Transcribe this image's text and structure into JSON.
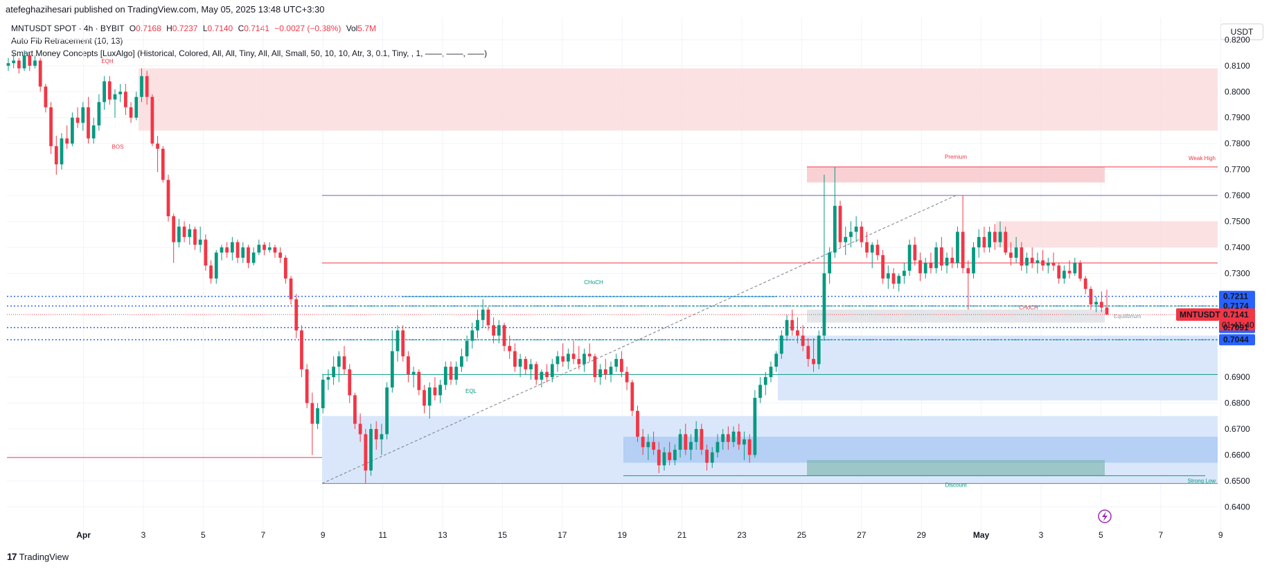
{
  "header": {
    "published": "atefeghazihesari published on TradingView.com, May 05, 2025 13:48 UTC+3:30"
  },
  "legend": {
    "symbol": "MNTUSDT SPOT · 4h · BYBIT",
    "o_label": "O",
    "o_value": "0.7168",
    "h_label": "H",
    "h_value": "0.7237",
    "l_label": "L",
    "l_value": "0.7140",
    "c_label": "C",
    "c_value": "0.7141",
    "change": "−0.0027 (−0.38%)",
    "vol_label": "Vol",
    "vol_value": "5.7M",
    "indicator1": "Auto Fib Retracement (10, 13)",
    "indicator2": "Smart Money Concepts [LuxAlgo] (Historical, Colored, All, All, Tiny, All, All, Small, 50, 10, 10, Atr, 3, 0.1, Tiny, , 1, ——, ——, ——)"
  },
  "currency_button": "USDT",
  "footer": {
    "brand": "TradingView",
    "logo": "17"
  },
  "colors": {
    "up": "#089981",
    "down": "#f23645",
    "supply": "#f7c5c9",
    "demand": "#bbd3f7",
    "blue_dot": "#2962ff",
    "purple": "#7e57c2"
  },
  "chart_data": {
    "type": "candlestick",
    "ylim": [
      0.635,
      0.83
    ],
    "y_ticks": [
      "0.8200",
      "0.8100",
      "0.8000",
      "0.7900",
      "0.7800",
      "0.7700",
      "0.7600",
      "0.7500",
      "0.7400",
      "0.7300",
      "0.6900",
      "0.6800",
      "0.6700",
      "0.6600",
      "0.6500",
      "0.6400"
    ],
    "y_tick_values": [
      0.82,
      0.81,
      0.8,
      0.79,
      0.78,
      0.77,
      0.76,
      0.75,
      0.74,
      0.73,
      0.69,
      0.68,
      0.67,
      0.66,
      0.65,
      0.64
    ],
    "x_tick_labels": [
      "Apr",
      "3",
      "5",
      "7",
      "9",
      "11",
      "13",
      "15",
      "17",
      "19",
      "21",
      "23",
      "25",
      "27",
      "29",
      "May",
      "3",
      "5",
      "7",
      "9"
    ],
    "x_tick_index": [
      -1,
      0,
      1,
      2,
      3,
      4,
      5,
      6,
      7,
      8,
      9,
      10,
      11,
      12,
      13,
      14,
      15,
      16,
      17,
      18
    ],
    "price_labels": [
      {
        "text": "0.7211",
        "value": 0.7211,
        "color": "#2962ff"
      },
      {
        "text": "0.7174",
        "value": 0.7174,
        "color": "#2962ff"
      },
      {
        "text": "0.7091",
        "value": 0.7091,
        "color": "#2962ff"
      },
      {
        "text": "0.7044",
        "value": 0.7044,
        "color": "#2962ff"
      }
    ],
    "last_price": {
      "symbol": "MNTUSDT",
      "price": "0.7141",
      "value": 0.7141,
      "countdown": "01:41:40"
    },
    "annotations": [
      {
        "text": "Premium",
        "color": "#f23645"
      },
      {
        "text": "Equilibrium",
        "color": "#9598a1"
      },
      {
        "text": "Discount",
        "color": "#089981"
      },
      {
        "text": "CHoCH",
        "color": "#089981"
      },
      {
        "text": "Weak High",
        "color": "#f23645"
      },
      {
        "text": "Strong Low",
        "color": "#089981"
      },
      {
        "text": "EQH",
        "color": "#f23645"
      },
      {
        "text": "BOS",
        "color": "#f23645"
      },
      {
        "text": "EQL",
        "color": "#089981"
      },
      {
        "text": "CHoCH",
        "color": "#f23645"
      }
    ],
    "candles": [
      [
        0.81,
        0.813,
        0.808,
        0.811
      ],
      [
        0.811,
        0.815,
        0.809,
        0.812
      ],
      [
        0.812,
        0.813,
        0.807,
        0.809
      ],
      [
        0.809,
        0.816,
        0.808,
        0.814
      ],
      [
        0.814,
        0.815,
        0.808,
        0.81
      ],
      [
        0.81,
        0.814,
        0.809,
        0.812
      ],
      [
        0.812,
        0.813,
        0.8,
        0.802
      ],
      [
        0.802,
        0.803,
        0.792,
        0.794
      ],
      [
        0.794,
        0.796,
        0.776,
        0.779
      ],
      [
        0.779,
        0.783,
        0.768,
        0.772
      ],
      [
        0.772,
        0.784,
        0.77,
        0.782
      ],
      [
        0.782,
        0.787,
        0.778,
        0.78
      ],
      [
        0.78,
        0.792,
        0.779,
        0.79
      ],
      [
        0.79,
        0.794,
        0.786,
        0.788
      ],
      [
        0.788,
        0.796,
        0.785,
        0.794
      ],
      [
        0.794,
        0.798,
        0.78,
        0.782
      ],
      [
        0.782,
        0.79,
        0.78,
        0.787
      ],
      [
        0.787,
        0.799,
        0.785,
        0.796
      ],
      [
        0.796,
        0.806,
        0.793,
        0.804
      ],
      [
        0.804,
        0.806,
        0.795,
        0.797
      ],
      [
        0.797,
        0.801,
        0.79,
        0.799
      ],
      [
        0.799,
        0.803,
        0.796,
        0.8
      ],
      [
        0.8,
        0.803,
        0.791,
        0.794
      ],
      [
        0.794,
        0.796,
        0.788,
        0.79
      ],
      [
        0.79,
        0.8,
        0.789,
        0.798
      ],
      [
        0.798,
        0.809,
        0.796,
        0.806
      ],
      [
        0.806,
        0.808,
        0.795,
        0.798
      ],
      [
        0.798,
        0.799,
        0.779,
        0.78
      ],
      [
        0.78,
        0.783,
        0.769,
        0.778
      ],
      [
        0.778,
        0.779,
        0.765,
        0.766
      ],
      [
        0.766,
        0.768,
        0.75,
        0.752
      ],
      [
        0.752,
        0.753,
        0.734,
        0.742
      ],
      [
        0.742,
        0.751,
        0.74,
        0.748
      ],
      [
        0.748,
        0.75,
        0.742,
        0.744
      ],
      [
        0.744,
        0.749,
        0.741,
        0.747
      ],
      [
        0.747,
        0.748,
        0.739,
        0.741
      ],
      [
        0.741,
        0.748,
        0.738,
        0.743
      ],
      [
        0.743,
        0.745,
        0.731,
        0.733
      ],
      [
        0.733,
        0.735,
        0.726,
        0.728
      ],
      [
        0.728,
        0.739,
        0.726,
        0.738
      ],
      [
        0.738,
        0.741,
        0.735,
        0.74
      ],
      [
        0.74,
        0.742,
        0.736,
        0.738
      ],
      [
        0.738,
        0.744,
        0.735,
        0.742
      ],
      [
        0.742,
        0.743,
        0.734,
        0.736
      ],
      [
        0.736,
        0.742,
        0.734,
        0.74
      ],
      [
        0.74,
        0.741,
        0.732,
        0.734
      ],
      [
        0.734,
        0.74,
        0.733,
        0.738
      ],
      [
        0.738,
        0.743,
        0.737,
        0.741
      ],
      [
        0.741,
        0.742,
        0.737,
        0.739
      ],
      [
        0.739,
        0.742,
        0.738,
        0.74
      ],
      [
        0.74,
        0.741,
        0.736,
        0.738
      ],
      [
        0.738,
        0.74,
        0.734,
        0.736
      ],
      [
        0.736,
        0.737,
        0.726,
        0.728
      ],
      [
        0.728,
        0.729,
        0.718,
        0.72
      ],
      [
        0.72,
        0.722,
        0.705,
        0.708
      ],
      [
        0.708,
        0.71,
        0.69,
        0.693
      ],
      [
        0.693,
        0.695,
        0.678,
        0.68
      ],
      [
        0.68,
        0.684,
        0.66,
        0.672
      ],
      [
        0.672,
        0.68,
        0.67,
        0.678
      ],
      [
        0.678,
        0.691,
        0.676,
        0.689
      ],
      [
        0.689,
        0.693,
        0.685,
        0.69
      ],
      [
        0.69,
        0.698,
        0.687,
        0.694
      ],
      [
        0.694,
        0.7,
        0.688,
        0.698
      ],
      [
        0.698,
        0.702,
        0.691,
        0.693
      ],
      [
        0.693,
        0.695,
        0.68,
        0.683
      ],
      [
        0.683,
        0.684,
        0.67,
        0.672
      ],
      [
        0.672,
        0.676,
        0.665,
        0.668
      ],
      [
        0.668,
        0.67,
        0.649,
        0.654
      ],
      [
        0.654,
        0.672,
        0.652,
        0.67
      ],
      [
        0.67,
        0.673,
        0.662,
        0.666
      ],
      [
        0.666,
        0.672,
        0.66,
        0.668
      ],
      [
        0.668,
        0.688,
        0.666,
        0.686
      ],
      [
        0.686,
        0.708,
        0.684,
        0.7
      ],
      [
        0.7,
        0.71,
        0.696,
        0.708
      ],
      [
        0.708,
        0.71,
        0.696,
        0.698
      ],
      [
        0.698,
        0.7,
        0.688,
        0.691
      ],
      [
        0.691,
        0.694,
        0.686,
        0.692
      ],
      [
        0.692,
        0.693,
        0.683,
        0.685
      ],
      [
        0.685,
        0.687,
        0.676,
        0.679
      ],
      [
        0.679,
        0.688,
        0.674,
        0.686
      ],
      [
        0.686,
        0.69,
        0.681,
        0.683
      ],
      [
        0.683,
        0.689,
        0.68,
        0.687
      ],
      [
        0.687,
        0.696,
        0.685,
        0.694
      ],
      [
        0.694,
        0.696,
        0.687,
        0.689
      ],
      [
        0.689,
        0.696,
        0.687,
        0.694
      ],
      [
        0.694,
        0.701,
        0.692,
        0.698
      ],
      [
        0.698,
        0.706,
        0.696,
        0.704
      ],
      [
        0.704,
        0.711,
        0.701,
        0.708
      ],
      [
        0.708,
        0.716,
        0.705,
        0.712
      ],
      [
        0.712,
        0.72,
        0.709,
        0.716
      ],
      [
        0.716,
        0.717,
        0.708,
        0.71
      ],
      [
        0.71,
        0.713,
        0.703,
        0.706
      ],
      [
        0.706,
        0.712,
        0.703,
        0.71
      ],
      [
        0.71,
        0.711,
        0.7,
        0.702
      ],
      [
        0.702,
        0.706,
        0.697,
        0.7
      ],
      [
        0.7,
        0.703,
        0.692,
        0.694
      ],
      [
        0.694,
        0.699,
        0.69,
        0.697
      ],
      [
        0.697,
        0.698,
        0.691,
        0.693
      ],
      [
        0.693,
        0.697,
        0.689,
        0.695
      ],
      [
        0.695,
        0.696,
        0.687,
        0.689
      ],
      [
        0.689,
        0.693,
        0.686,
        0.692
      ],
      [
        0.692,
        0.695,
        0.688,
        0.69
      ],
      [
        0.69,
        0.697,
        0.688,
        0.695
      ],
      [
        0.695,
        0.7,
        0.692,
        0.698
      ],
      [
        0.698,
        0.703,
        0.694,
        0.696
      ],
      [
        0.696,
        0.701,
        0.693,
        0.699
      ],
      [
        0.699,
        0.704,
        0.695,
        0.697
      ],
      [
        0.697,
        0.702,
        0.693,
        0.695
      ],
      [
        0.695,
        0.701,
        0.692,
        0.699
      ],
      [
        0.699,
        0.703,
        0.696,
        0.698
      ],
      [
        0.698,
        0.699,
        0.688,
        0.69
      ],
      [
        0.69,
        0.695,
        0.687,
        0.693
      ],
      [
        0.693,
        0.697,
        0.689,
        0.691
      ],
      [
        0.691,
        0.696,
        0.688,
        0.694
      ],
      [
        0.694,
        0.699,
        0.692,
        0.697
      ],
      [
        0.697,
        0.7,
        0.69,
        0.692
      ],
      [
        0.692,
        0.694,
        0.685,
        0.688
      ],
      [
        0.688,
        0.689,
        0.675,
        0.677
      ],
      [
        0.677,
        0.679,
        0.665,
        0.667
      ],
      [
        0.667,
        0.67,
        0.66,
        0.663
      ],
      [
        0.663,
        0.668,
        0.658,
        0.665
      ],
      [
        0.665,
        0.669,
        0.66,
        0.662
      ],
      [
        0.662,
        0.665,
        0.653,
        0.656
      ],
      [
        0.656,
        0.663,
        0.654,
        0.661
      ],
      [
        0.661,
        0.665,
        0.656,
        0.658
      ],
      [
        0.658,
        0.664,
        0.656,
        0.662
      ],
      [
        0.662,
        0.67,
        0.659,
        0.668
      ],
      [
        0.668,
        0.672,
        0.66,
        0.662
      ],
      [
        0.662,
        0.668,
        0.658,
        0.665
      ],
      [
        0.665,
        0.673,
        0.662,
        0.67
      ],
      [
        0.67,
        0.672,
        0.66,
        0.662
      ],
      [
        0.662,
        0.664,
        0.654,
        0.657
      ],
      [
        0.657,
        0.663,
        0.655,
        0.661
      ],
      [
        0.661,
        0.668,
        0.659,
        0.665
      ],
      [
        0.665,
        0.67,
        0.662,
        0.668
      ],
      [
        0.668,
        0.671,
        0.662,
        0.665
      ],
      [
        0.665,
        0.671,
        0.663,
        0.669
      ],
      [
        0.669,
        0.672,
        0.662,
        0.664
      ],
      [
        0.664,
        0.669,
        0.658,
        0.666
      ],
      [
        0.666,
        0.668,
        0.657,
        0.66
      ],
      [
        0.66,
        0.685,
        0.659,
        0.682
      ],
      [
        0.682,
        0.69,
        0.68,
        0.687
      ],
      [
        0.687,
        0.692,
        0.683,
        0.69
      ],
      [
        0.69,
        0.696,
        0.688,
        0.694
      ],
      [
        0.694,
        0.7,
        0.692,
        0.699
      ],
      [
        0.699,
        0.708,
        0.697,
        0.706
      ],
      [
        0.706,
        0.714,
        0.704,
        0.712
      ],
      [
        0.712,
        0.716,
        0.706,
        0.708
      ],
      [
        0.708,
        0.713,
        0.703,
        0.706
      ],
      [
        0.706,
        0.71,
        0.7,
        0.702
      ],
      [
        0.702,
        0.705,
        0.694,
        0.697
      ],
      [
        0.697,
        0.705,
        0.692,
        0.695
      ],
      [
        0.695,
        0.708,
        0.693,
        0.706
      ],
      [
        0.706,
        0.768,
        0.704,
        0.73
      ],
      [
        0.73,
        0.74,
        0.726,
        0.738
      ],
      [
        0.738,
        0.771,
        0.736,
        0.756
      ],
      [
        0.756,
        0.758,
        0.74,
        0.742
      ],
      [
        0.742,
        0.748,
        0.737,
        0.744
      ],
      [
        0.744,
        0.75,
        0.74,
        0.746
      ],
      [
        0.746,
        0.752,
        0.742,
        0.748
      ],
      [
        0.748,
        0.75,
        0.74,
        0.742
      ],
      [
        0.742,
        0.746,
        0.736,
        0.738
      ],
      [
        0.738,
        0.742,
        0.732,
        0.741
      ],
      [
        0.741,
        0.743,
        0.735,
        0.737
      ],
      [
        0.737,
        0.739,
        0.726,
        0.728
      ],
      [
        0.728,
        0.733,
        0.724,
        0.73
      ],
      [
        0.73,
        0.732,
        0.724,
        0.726
      ],
      [
        0.726,
        0.73,
        0.723,
        0.729
      ],
      [
        0.729,
        0.734,
        0.726,
        0.731
      ],
      [
        0.731,
        0.743,
        0.729,
        0.741
      ],
      [
        0.741,
        0.744,
        0.733,
        0.735
      ],
      [
        0.735,
        0.738,
        0.727,
        0.73
      ],
      [
        0.73,
        0.736,
        0.728,
        0.734
      ],
      [
        0.734,
        0.738,
        0.73,
        0.732
      ],
      [
        0.732,
        0.742,
        0.73,
        0.74
      ],
      [
        0.74,
        0.744,
        0.731,
        0.733
      ],
      [
        0.733,
        0.738,
        0.73,
        0.736
      ],
      [
        0.736,
        0.74,
        0.732,
        0.734
      ],
      [
        0.734,
        0.748,
        0.732,
        0.746
      ],
      [
        0.746,
        0.76,
        0.73,
        0.732
      ],
      [
        0.732,
        0.735,
        0.716,
        0.73
      ],
      [
        0.73,
        0.742,
        0.728,
        0.74
      ],
      [
        0.74,
        0.747,
        0.736,
        0.744
      ],
      [
        0.744,
        0.748,
        0.738,
        0.74
      ],
      [
        0.74,
        0.748,
        0.738,
        0.746
      ],
      [
        0.746,
        0.749,
        0.739,
        0.742
      ],
      [
        0.742,
        0.75,
        0.74,
        0.746
      ],
      [
        0.746,
        0.748,
        0.737,
        0.738
      ],
      [
        0.738,
        0.742,
        0.733,
        0.736
      ],
      [
        0.736,
        0.744,
        0.734,
        0.74
      ],
      [
        0.74,
        0.742,
        0.731,
        0.733
      ],
      [
        0.733,
        0.738,
        0.73,
        0.736
      ],
      [
        0.736,
        0.74,
        0.732,
        0.734
      ],
      [
        0.734,
        0.738,
        0.73,
        0.735
      ],
      [
        0.735,
        0.739,
        0.731,
        0.733
      ],
      [
        0.733,
        0.736,
        0.73,
        0.734
      ],
      [
        0.734,
        0.738,
        0.731,
        0.733
      ],
      [
        0.733,
        0.734,
        0.726,
        0.728
      ],
      [
        0.728,
        0.733,
        0.726,
        0.731
      ],
      [
        0.731,
        0.735,
        0.728,
        0.73
      ],
      [
        0.73,
        0.736,
        0.729,
        0.734
      ],
      [
        0.734,
        0.735,
        0.727,
        0.728
      ],
      [
        0.728,
        0.729,
        0.722,
        0.724
      ],
      [
        0.724,
        0.725,
        0.716,
        0.718
      ],
      [
        0.718,
        0.721,
        0.715,
        0.719
      ],
      [
        0.719,
        0.723,
        0.715,
        0.7168
      ],
      [
        0.7168,
        0.7237,
        0.714,
        0.7141
      ]
    ]
  }
}
